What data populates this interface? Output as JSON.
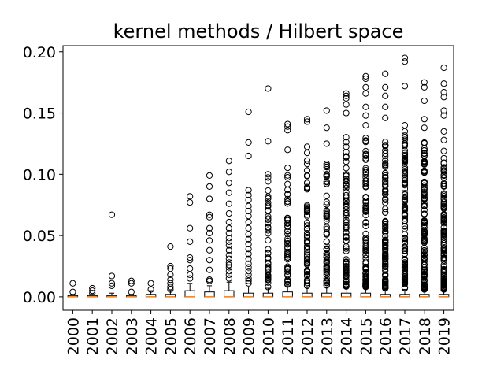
{
  "chart_data": {
    "type": "box",
    "title": "kernel methods / Hilbert space",
    "xlabel": "",
    "ylabel": "",
    "ylim": [
      -0.011,
      0.205
    ],
    "yticks": [
      0.0,
      0.05,
      0.1,
      0.15,
      0.2
    ],
    "ytick_labels": [
      "0.00",
      "0.05",
      "0.10",
      "0.15",
      "0.20"
    ],
    "categories": [
      "2000",
      "2001",
      "2002",
      "2003",
      "2004",
      "2005",
      "2006",
      "2007",
      "2008",
      "2009",
      "2010",
      "2011",
      "2012",
      "2013",
      "2014",
      "2015",
      "2016",
      "2017",
      "2018",
      "2019"
    ],
    "colors": {
      "box": "#000000",
      "median": "#ff7f0e",
      "flier": "#000000"
    },
    "boxes": [
      {
        "q1": 0.0,
        "median": 0.0,
        "q3": 0.001,
        "whislo": 0.0,
        "whishi": 0.002,
        "fliers": [
          0.004,
          0.011
        ]
      },
      {
        "q1": 0.0,
        "median": 0.0,
        "q3": 0.001,
        "whislo": 0.0,
        "whishi": 0.002,
        "fliers": [
          0.003,
          0.005,
          0.007
        ]
      },
      {
        "q1": 0.0,
        "median": 0.0,
        "q3": 0.001,
        "whislo": 0.0,
        "whishi": 0.003,
        "fliers": [
          0.009,
          0.011,
          0.017,
          0.067
        ]
      },
      {
        "q1": 0.0,
        "median": 0.0,
        "q3": 0.001,
        "whislo": 0.0,
        "whishi": 0.002,
        "fliers": [
          0.004,
          0.011,
          0.013
        ]
      },
      {
        "q1": 0.0,
        "median": 0.0,
        "q3": 0.002,
        "whislo": 0.0,
        "whishi": 0.005,
        "fliers": [
          0.006,
          0.011
        ]
      },
      {
        "q1": 0.0,
        "median": 0.0,
        "q3": 0.002,
        "whislo": 0.0,
        "whishi": 0.005,
        "fliers": [
          0.006,
          0.008,
          0.011,
          0.014,
          0.018,
          0.023,
          0.025,
          0.041
        ]
      },
      {
        "q1": 0.0,
        "median": 0.0,
        "q3": 0.005,
        "whislo": 0.0,
        "whishi": 0.011,
        "fliers": [
          0.015,
          0.018,
          0.023,
          0.03,
          0.032,
          0.045,
          0.056,
          0.077,
          0.082
        ]
      },
      {
        "q1": 0.0,
        "median": 0.0,
        "q3": 0.004,
        "whislo": 0.0,
        "whishi": 0.009,
        "fliers": [
          0.013,
          0.014,
          0.022,
          0.03,
          0.038,
          0.046,
          0.052,
          0.056,
          0.065,
          0.067,
          0.08,
          0.09,
          0.099
        ]
      },
      {
        "q1": 0.0,
        "median": 0.0,
        "q3": 0.005,
        "whislo": 0.0,
        "whishi": 0.012,
        "fliers": [
          0.015,
          0.018,
          0.021,
          0.024,
          0.026,
          0.028,
          0.031,
          0.034,
          0.038,
          0.042,
          0.045,
          0.048,
          0.052,
          0.056,
          0.061,
          0.068,
          0.076,
          0.085,
          0.093,
          0.102,
          0.111
        ]
      },
      {
        "q1": 0.0,
        "median": 0.0,
        "q3": 0.003,
        "whislo": 0.0,
        "whishi": 0.008,
        "fliers": [
          0.011,
          0.013,
          0.015,
          0.018,
          0.021,
          0.024,
          0.027,
          0.031,
          0.035,
          0.039,
          0.043,
          0.047,
          0.051,
          0.056,
          0.061,
          0.066,
          0.07,
          0.074,
          0.079,
          0.083,
          0.087,
          0.115,
          0.126,
          0.151
        ]
      },
      {
        "q1": 0.0,
        "median": 0.0,
        "q3": 0.003,
        "whislo": 0.0,
        "whishi": 0.007,
        "fliers": [
          0.008,
          0.1,
          0.127,
          0.17
        ],
        "flier_range": [
          0.009,
          0.098
        ],
        "flier_count": 40
      },
      {
        "q1": 0.0,
        "median": 0.0,
        "q3": 0.004,
        "whislo": 0.0,
        "whishi": 0.009,
        "fliers": [
          0.12,
          0.136,
          0.139,
          0.141
        ],
        "flier_range": [
          0.01,
          0.106
        ],
        "flier_count": 55
      },
      {
        "q1": 0.0,
        "median": 0.0,
        "q3": 0.003,
        "whislo": 0.0,
        "whishi": 0.008,
        "fliers": [
          0.143,
          0.145
        ],
        "flier_range": [
          0.009,
          0.123
        ],
        "flier_count": 65
      },
      {
        "q1": 0.0,
        "median": 0.0,
        "q3": 0.003,
        "whislo": 0.0,
        "whishi": 0.008,
        "fliers": [
          0.125,
          0.138,
          0.152
        ],
        "flier_range": [
          0.009,
          0.11
        ],
        "flier_count": 70
      },
      {
        "q1": 0.0,
        "median": 0.0,
        "q3": 0.003,
        "whislo": 0.0,
        "whishi": 0.007,
        "fliers": [
          0.15,
          0.157,
          0.162,
          0.164,
          0.166
        ],
        "flier_range": [
          0.008,
          0.132
        ],
        "flier_count": 80
      },
      {
        "q1": 0.0,
        "median": 0.0,
        "q3": 0.003,
        "whislo": 0.0,
        "whishi": 0.007,
        "fliers": [
          0.14,
          0.148,
          0.155,
          0.166,
          0.171,
          0.178,
          0.18
        ],
        "flier_range": [
          0.008,
          0.131
        ],
        "flier_count": 95
      },
      {
        "q1": 0.0,
        "median": 0.0,
        "q3": 0.002,
        "whislo": 0.0,
        "whishi": 0.006,
        "fliers": [
          0.146,
          0.155,
          0.164,
          0.171,
          0.182
        ],
        "flier_range": [
          0.007,
          0.131
        ],
        "flier_count": 110
      },
      {
        "q1": 0.0,
        "median": 0.0,
        "q3": 0.002,
        "whislo": 0.0,
        "whishi": 0.006,
        "fliers": [
          0.135,
          0.14,
          0.172,
          0.192,
          0.195
        ],
        "flier_range": [
          0.007,
          0.132
        ],
        "flier_count": 115
      },
      {
        "q1": 0.0,
        "median": 0.0,
        "q3": 0.002,
        "whislo": 0.0,
        "whishi": 0.005,
        "fliers": [
          0.138,
          0.145,
          0.16,
          0.171,
          0.175
        ],
        "flier_range": [
          0.006,
          0.132
        ],
        "flier_count": 120
      },
      {
        "q1": 0.0,
        "median": 0.0,
        "q3": 0.002,
        "whislo": 0.0,
        "whishi": 0.005,
        "fliers": [
          0.119,
          0.128,
          0.135,
          0.148,
          0.152,
          0.163,
          0.167,
          0.174,
          0.187
        ],
        "flier_range": [
          0.006,
          0.117
        ],
        "flier_count": 125
      }
    ]
  }
}
